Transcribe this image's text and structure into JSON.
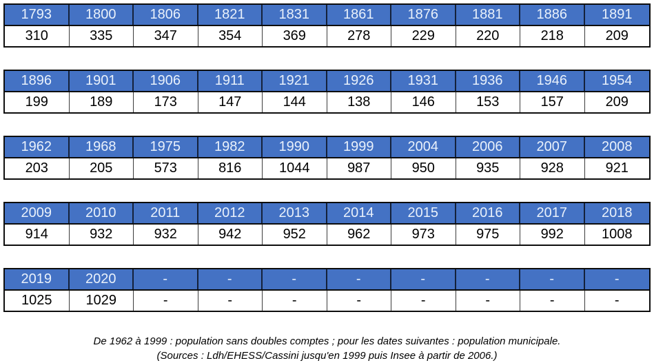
{
  "colors": {
    "header_bg": "#4472C4",
    "header_text": "#E9F1FB",
    "border": "#0D0D0D",
    "cell_bg": "#FFFFFF",
    "cell_text": "#000000"
  },
  "tables": [
    {
      "years": [
        "1793",
        "1800",
        "1806",
        "1821",
        "1831",
        "1861",
        "1876",
        "1881",
        "1886",
        "1891"
      ],
      "values": [
        "310",
        "335",
        "347",
        "354",
        "369",
        "278",
        "229",
        "220",
        "218",
        "209"
      ]
    },
    {
      "years": [
        "1896",
        "1901",
        "1906",
        "1911",
        "1921",
        "1926",
        "1931",
        "1936",
        "1946",
        "1954"
      ],
      "values": [
        "199",
        "189",
        "173",
        "147",
        "144",
        "138",
        "146",
        "153",
        "157",
        "209"
      ]
    },
    {
      "years": [
        "1962",
        "1968",
        "1975",
        "1982",
        "1990",
        "1999",
        "2004",
        "2006",
        "2007",
        "2008"
      ],
      "values": [
        "203",
        "205",
        "573",
        "816",
        "1044",
        "987",
        "950",
        "935",
        "928",
        "921"
      ]
    },
    {
      "years": [
        "2009",
        "2010",
        "2011",
        "2012",
        "2013",
        "2014",
        "2015",
        "2016",
        "2017",
        "2018"
      ],
      "values": [
        "914",
        "932",
        "932",
        "942",
        "952",
        "962",
        "973",
        "975",
        "992",
        "1008"
      ]
    },
    {
      "years": [
        "2019",
        "2020",
        "-",
        "-",
        "-",
        "-",
        "-",
        "-",
        "-",
        "-"
      ],
      "values": [
        "1025",
        "1029",
        "-",
        "-",
        "-",
        "-",
        "-",
        "-",
        "-",
        "-"
      ]
    }
  ],
  "footer": {
    "line1": "De 1962 à 1999 : population sans doubles comptes ; pour les dates suivantes : population municipale.",
    "line2": "(Sources : Ldh/EHESS/Cassini jusqu'en 1999 puis Insee à partir de 2006.)"
  },
  "chart_data": {
    "type": "table",
    "x": [
      1793,
      1800,
      1806,
      1821,
      1831,
      1861,
      1876,
      1881,
      1886,
      1891,
      1896,
      1901,
      1906,
      1911,
      1921,
      1926,
      1931,
      1936,
      1946,
      1954,
      1962,
      1968,
      1975,
      1982,
      1990,
      1999,
      2004,
      2006,
      2007,
      2008,
      2009,
      2010,
      2011,
      2012,
      2013,
      2014,
      2015,
      2016,
      2017,
      2018,
      2019,
      2020
    ],
    "values": [
      310,
      335,
      347,
      354,
      369,
      278,
      229,
      220,
      218,
      209,
      199,
      189,
      173,
      147,
      144,
      138,
      146,
      153,
      157,
      209,
      203,
      205,
      573,
      816,
      1044,
      987,
      950,
      935,
      928,
      921,
      914,
      932,
      932,
      942,
      952,
      962,
      973,
      975,
      992,
      1008,
      1025,
      1029
    ],
    "columns_per_block": 10,
    "notes": [
      "De 1962 à 1999 : population sans doubles comptes ; pour les dates suivantes : population municipale.",
      "(Sources : Ldh/EHESS/Cassini jusqu'en 1999 puis Insee à partir de 2006.)"
    ]
  }
}
